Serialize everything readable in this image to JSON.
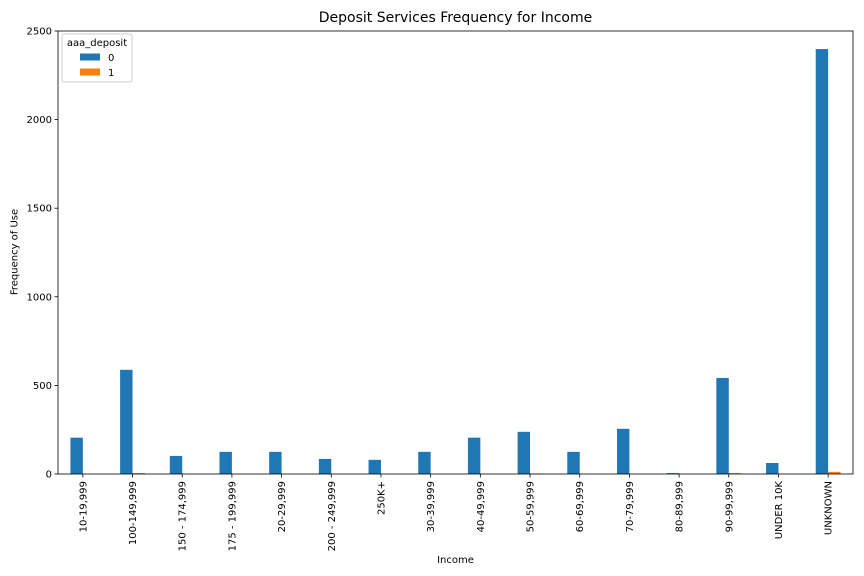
{
  "chart_data": {
    "type": "bar",
    "title": "Deposit Services Frequency for Income",
    "xlabel": "Income",
    "ylabel": "Frequency of Use",
    "ylim": [
      0,
      2500
    ],
    "yticks": [
      0,
      500,
      1000,
      1500,
      2000,
      2500
    ],
    "grid": false,
    "legend": {
      "title": "aaa_deposit",
      "placement": "top-left"
    },
    "categories": [
      "10-19,999",
      "100-149,999",
      "150 - 174,999",
      "175 - 199,999",
      "20-29,999",
      "200 - 249,999",
      "250K+",
      "30-39,999",
      "40-49,999",
      "50-59,999",
      "60-69,999",
      "70-79,999",
      "80-89,999",
      "90-99,999",
      "UNDER 10K",
      "UNKNOWN"
    ],
    "series": [
      {
        "name": "0",
        "color": "#1f77b4",
        "values": [
          205,
          588,
          102,
          125,
          125,
          85,
          80,
          125,
          205,
          238,
          125,
          255,
          5,
          542,
          62,
          2398
        ]
      },
      {
        "name": "1",
        "color": "#ff7f0e",
        "values": [
          0,
          5,
          0,
          0,
          0,
          0,
          0,
          0,
          0,
          3,
          0,
          0,
          0,
          5,
          0,
          12
        ]
      }
    ]
  }
}
